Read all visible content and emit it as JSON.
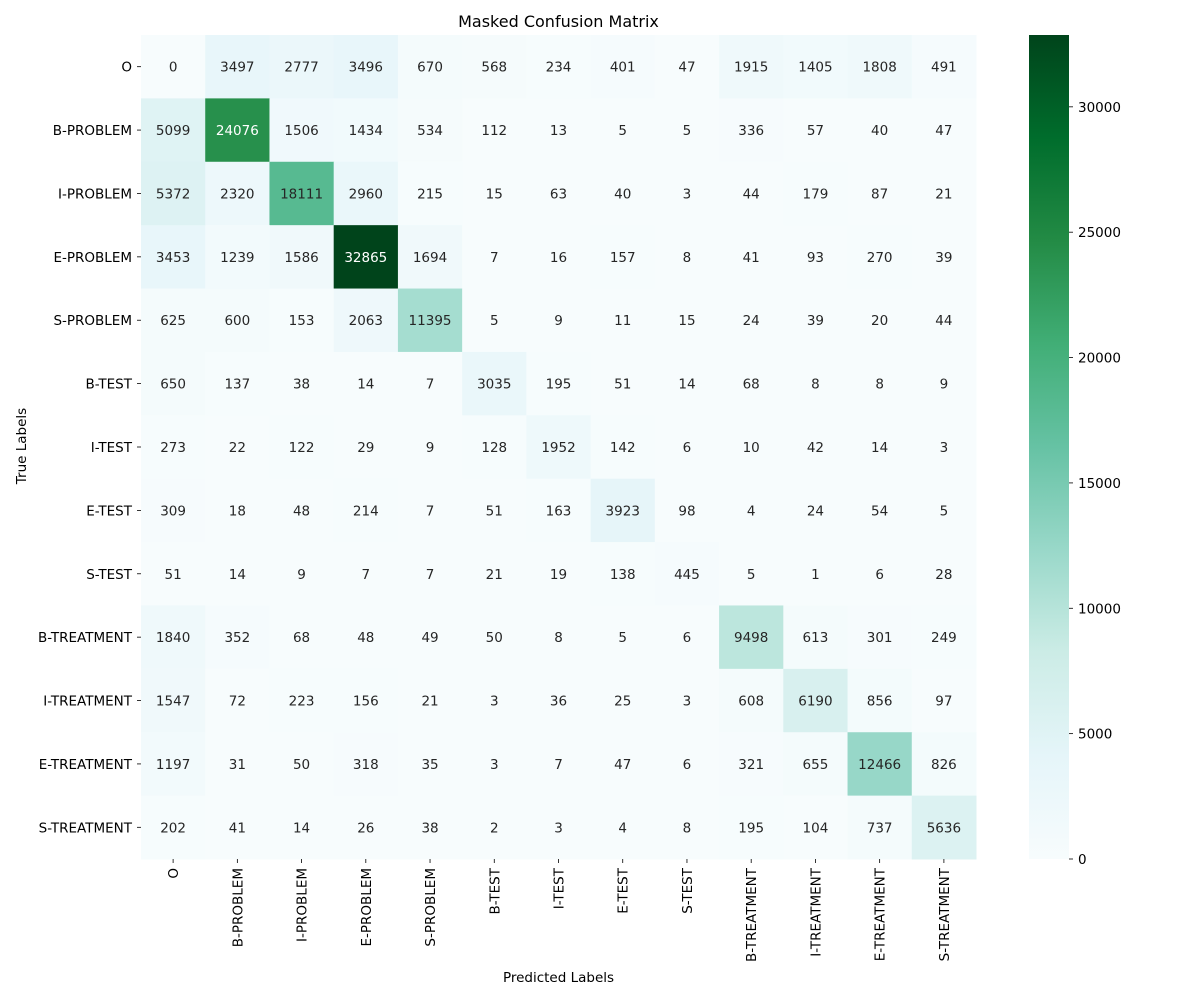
{
  "chart_data": {
    "type": "heatmap",
    "title": "Masked Confusion Matrix",
    "xlabel": "Predicted Labels",
    "ylabel": "True Labels",
    "x_categories": [
      "O",
      "B-PROBLEM",
      "I-PROBLEM",
      "E-PROBLEM",
      "S-PROBLEM",
      "B-TEST",
      "I-TEST",
      "E-TEST",
      "S-TEST",
      "B-TREATMENT",
      "I-TREATMENT",
      "E-TREATMENT",
      "S-TREATMENT"
    ],
    "y_categories": [
      "O",
      "B-PROBLEM",
      "I-PROBLEM",
      "E-PROBLEM",
      "S-PROBLEM",
      "B-TEST",
      "I-TEST",
      "E-TEST",
      "S-TEST",
      "B-TREATMENT",
      "I-TREATMENT",
      "E-TREATMENT",
      "S-TREATMENT"
    ],
    "values": [
      [
        0,
        3497,
        2777,
        3496,
        670,
        568,
        234,
        401,
        47,
        1915,
        1405,
        1808,
        491
      ],
      [
        5099,
        24076,
        1506,
        1434,
        534,
        112,
        13,
        5,
        5,
        336,
        57,
        40,
        47
      ],
      [
        5372,
        2320,
        18111,
        2960,
        215,
        15,
        63,
        40,
        3,
        44,
        179,
        87,
        21
      ],
      [
        3453,
        1239,
        1586,
        32865,
        1694,
        7,
        16,
        157,
        8,
        41,
        93,
        270,
        39
      ],
      [
        625,
        600,
        153,
        2063,
        11395,
        5,
        9,
        11,
        15,
        24,
        39,
        20,
        44
      ],
      [
        650,
        137,
        38,
        14,
        7,
        3035,
        195,
        51,
        14,
        68,
        8,
        8,
        9
      ],
      [
        273,
        22,
        122,
        29,
        9,
        128,
        1952,
        142,
        6,
        10,
        42,
        14,
        3
      ],
      [
        309,
        18,
        48,
        214,
        7,
        51,
        163,
        3923,
        98,
        4,
        24,
        54,
        5
      ],
      [
        51,
        14,
        9,
        7,
        7,
        21,
        19,
        138,
        445,
        5,
        1,
        6,
        28
      ],
      [
        1840,
        352,
        68,
        48,
        49,
        50,
        8,
        5,
        6,
        9498,
        613,
        301,
        249
      ],
      [
        1547,
        72,
        223,
        156,
        21,
        3,
        36,
        25,
        3,
        608,
        6190,
        856,
        97
      ],
      [
        1197,
        31,
        50,
        318,
        35,
        3,
        7,
        47,
        6,
        321,
        655,
        12466,
        826
      ],
      [
        202,
        41,
        14,
        26,
        38,
        2,
        3,
        4,
        8,
        195,
        104,
        737,
        5636
      ]
    ],
    "colorbar": {
      "min": 0,
      "max": 32865,
      "ticks": [
        0,
        5000,
        10000,
        15000,
        20000,
        25000,
        30000
      ],
      "colormap": "BuGn",
      "colors": [
        "#f7fcfd",
        "#e5f5f9",
        "#ccece6",
        "#99d8c9",
        "#66c2a4",
        "#41ae76",
        "#238b45",
        "#006d2c",
        "#00441b"
      ]
    },
    "annotation_light_text_color": "#ffffff",
    "annotation_dark_text_color": "#262626"
  }
}
